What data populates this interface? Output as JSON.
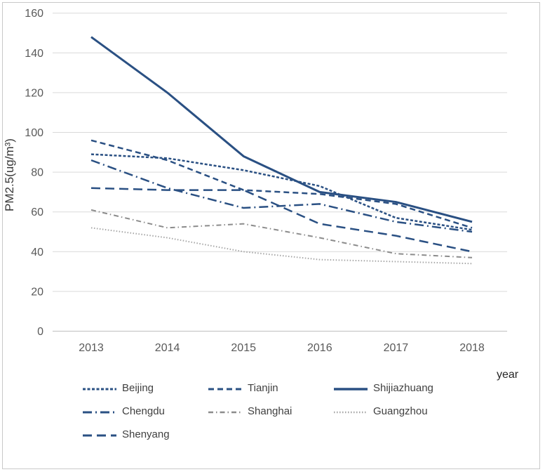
{
  "window": {
    "background": "#ffffff",
    "border_color": "#c9c9c9"
  },
  "colors": {
    "line_blue": "#2a5083",
    "line_gray": "#8c8c8c",
    "line_light_gray": "#a6a6a6",
    "gridline": "#d9d9d9",
    "axis_line": "#bfbfbf",
    "tick_text": "#595959",
    "legend_text": "#404040"
  },
  "chart_data": {
    "type": "line",
    "title": "",
    "xlabel": "year",
    "ylabel": "PM2.5(ug/m³)",
    "x": [
      "2013",
      "2014",
      "2015",
      "2016",
      "2017",
      "2018"
    ],
    "ylim": [
      0,
      160
    ],
    "yticks": [
      0,
      20,
      40,
      60,
      80,
      100,
      120,
      140,
      160
    ],
    "grid": true,
    "legend_position": "bottom",
    "legend_columns": 3,
    "series": [
      {
        "name": "Beijing",
        "color": "#2a5083",
        "dash": "short-dash",
        "values": [
          89,
          87,
          81,
          73,
          57,
          51
        ]
      },
      {
        "name": "Tianjin",
        "color": "#2a5083",
        "dash": "medium-dash",
        "values": [
          96,
          86,
          71,
          69,
          64,
          52
        ]
      },
      {
        "name": "Shijiazhuang",
        "color": "#2a5083",
        "dash": "solid",
        "values": [
          148,
          120,
          88,
          70,
          65,
          55
        ]
      },
      {
        "name": "Chengdu",
        "color": "#2a5083",
        "dash": "long-dash-dot",
        "values": [
          86,
          72,
          62,
          64,
          55,
          50
        ]
      },
      {
        "name": "Shanghai",
        "color": "#8c8c8c",
        "dash": "dash-dot",
        "values": [
          61,
          52,
          54,
          47,
          39,
          37
        ]
      },
      {
        "name": "Guangzhou",
        "color": "#a6a6a6",
        "dash": "dot",
        "values": [
          52,
          47,
          40,
          36,
          35,
          34
        ]
      },
      {
        "name": "Shenyang",
        "color": "#2a5083",
        "dash": "long-dash",
        "values": [
          72,
          71,
          71,
          54,
          48,
          40
        ]
      }
    ]
  }
}
